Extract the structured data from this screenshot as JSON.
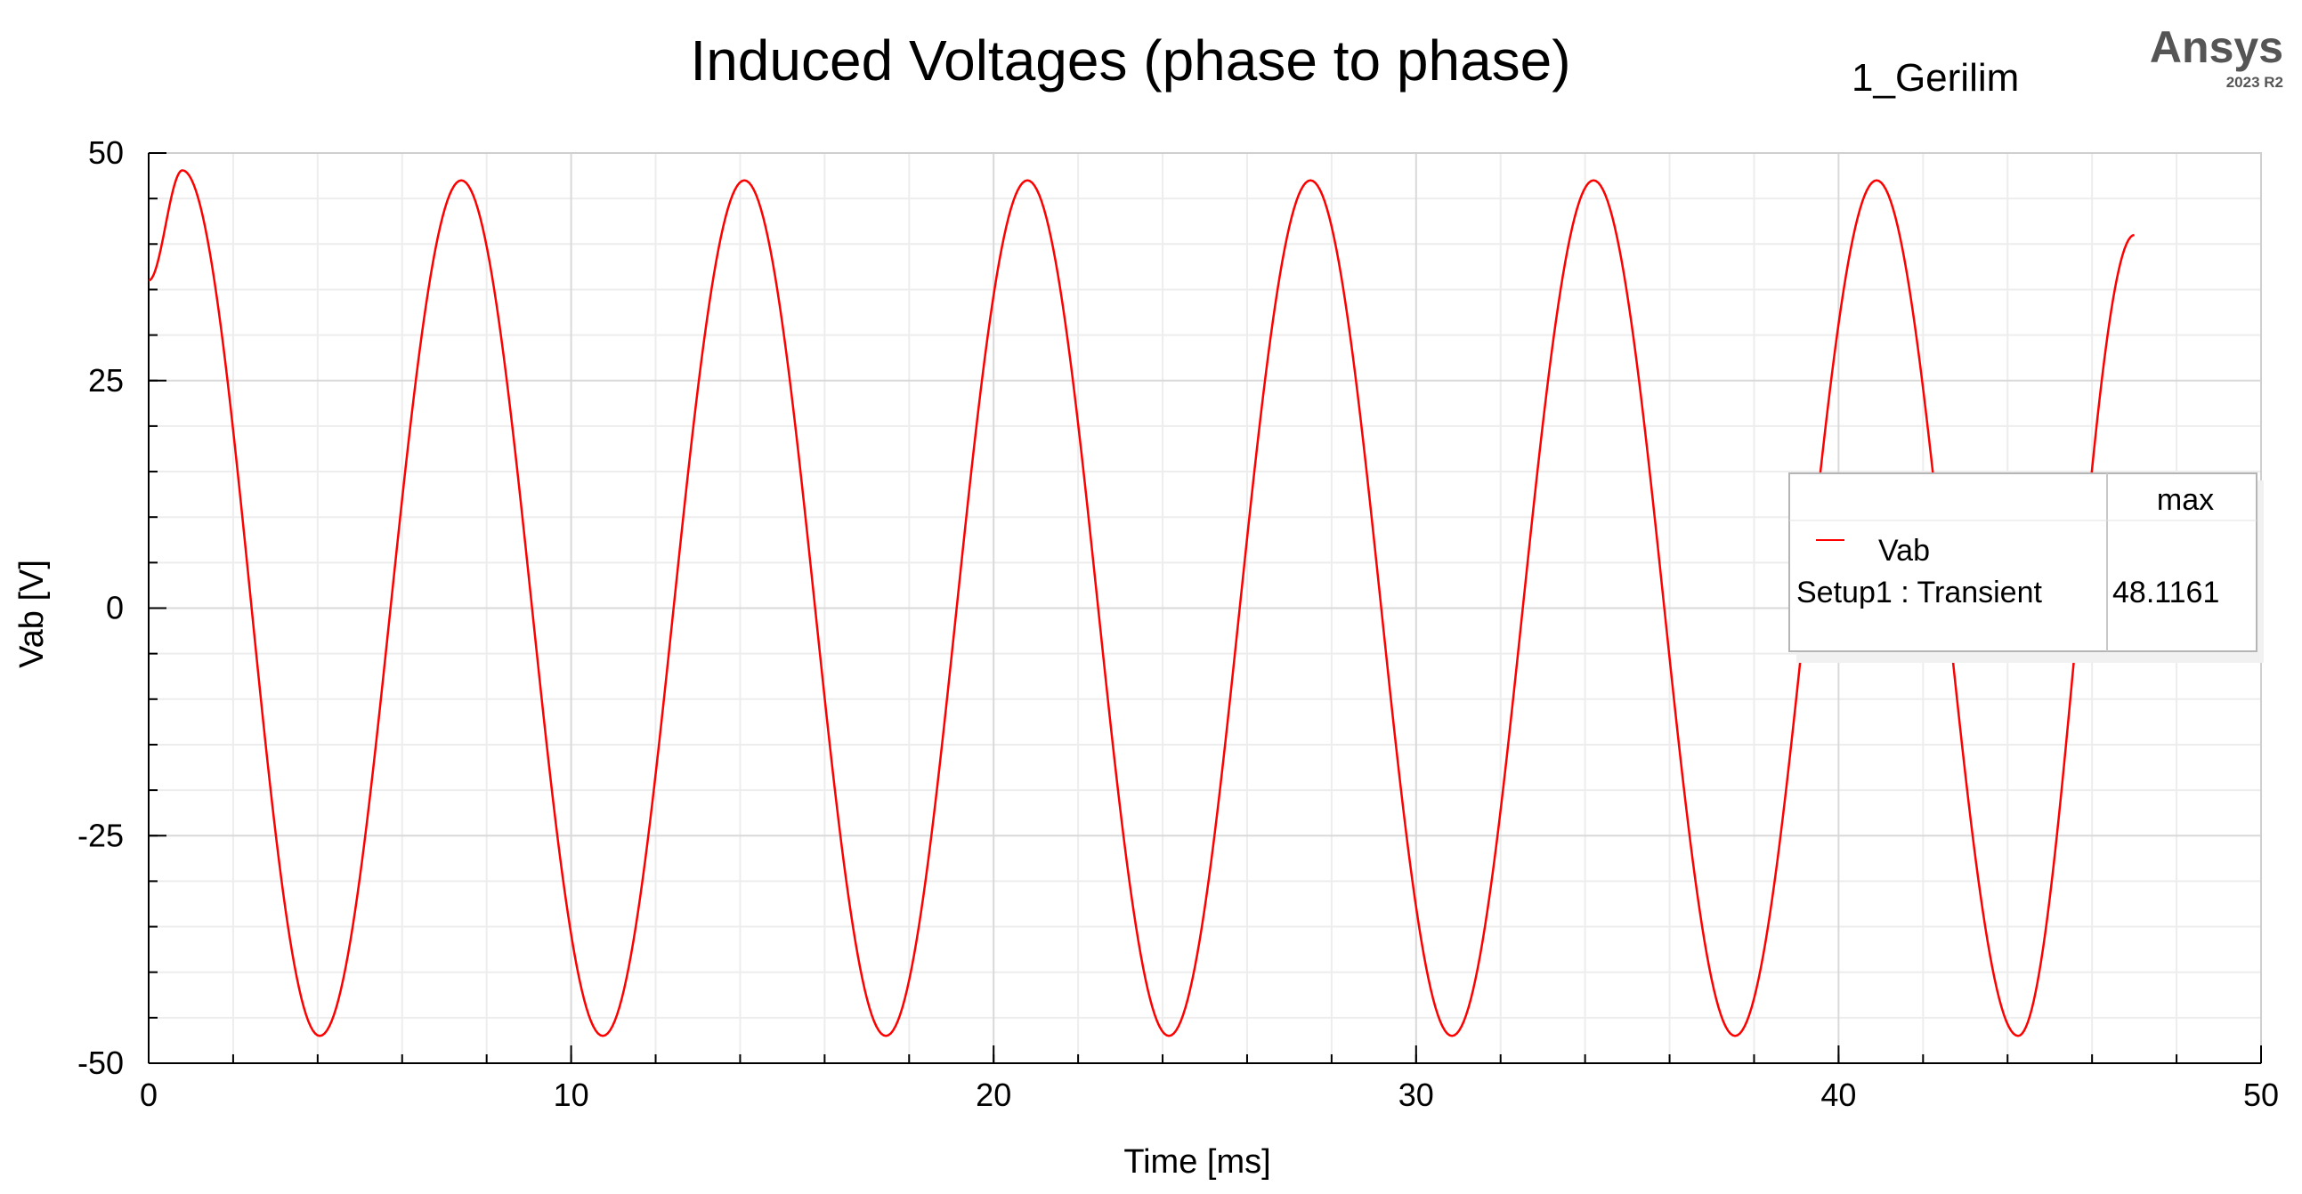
{
  "chart_data": {
    "type": "line",
    "title": "Induced Voltages (phase to phase)",
    "subtitle": "1_Gerilim",
    "brand": {
      "name": "Ansys",
      "version": "2023 R2"
    },
    "xlabel": "Time [ms]",
    "ylabel": "Vab [V]",
    "xlim": [
      0,
      50
    ],
    "ylim": [
      -50,
      50
    ],
    "xticks": [
      0,
      10,
      20,
      30,
      40,
      50
    ],
    "yticks": [
      -50,
      -25,
      0,
      25,
      50
    ],
    "grid": true,
    "series": [
      {
        "name": "Vab",
        "color": "#ff0000",
        "x": [
          0,
          0.8,
          4.05,
          7.4,
          10.75,
          14.1,
          17.45,
          20.8,
          24.15,
          27.5,
          30.85,
          34.2,
          37.55,
          40.9,
          44.25,
          47.0
        ],
        "y": [
          36.0,
          48.1,
          -47.0,
          47.0,
          -47.0,
          47.0,
          -47.0,
          47.0,
          -47.0,
          47.0,
          -47.0,
          47.0,
          -47.0,
          47.0,
          -47.0,
          41.0
        ]
      }
    ],
    "legend": {
      "position": "right",
      "column_header": "max",
      "entries": [
        {
          "name": "Vab",
          "source": "Setup1 : Transient",
          "max": "48.1161"
        }
      ]
    }
  }
}
